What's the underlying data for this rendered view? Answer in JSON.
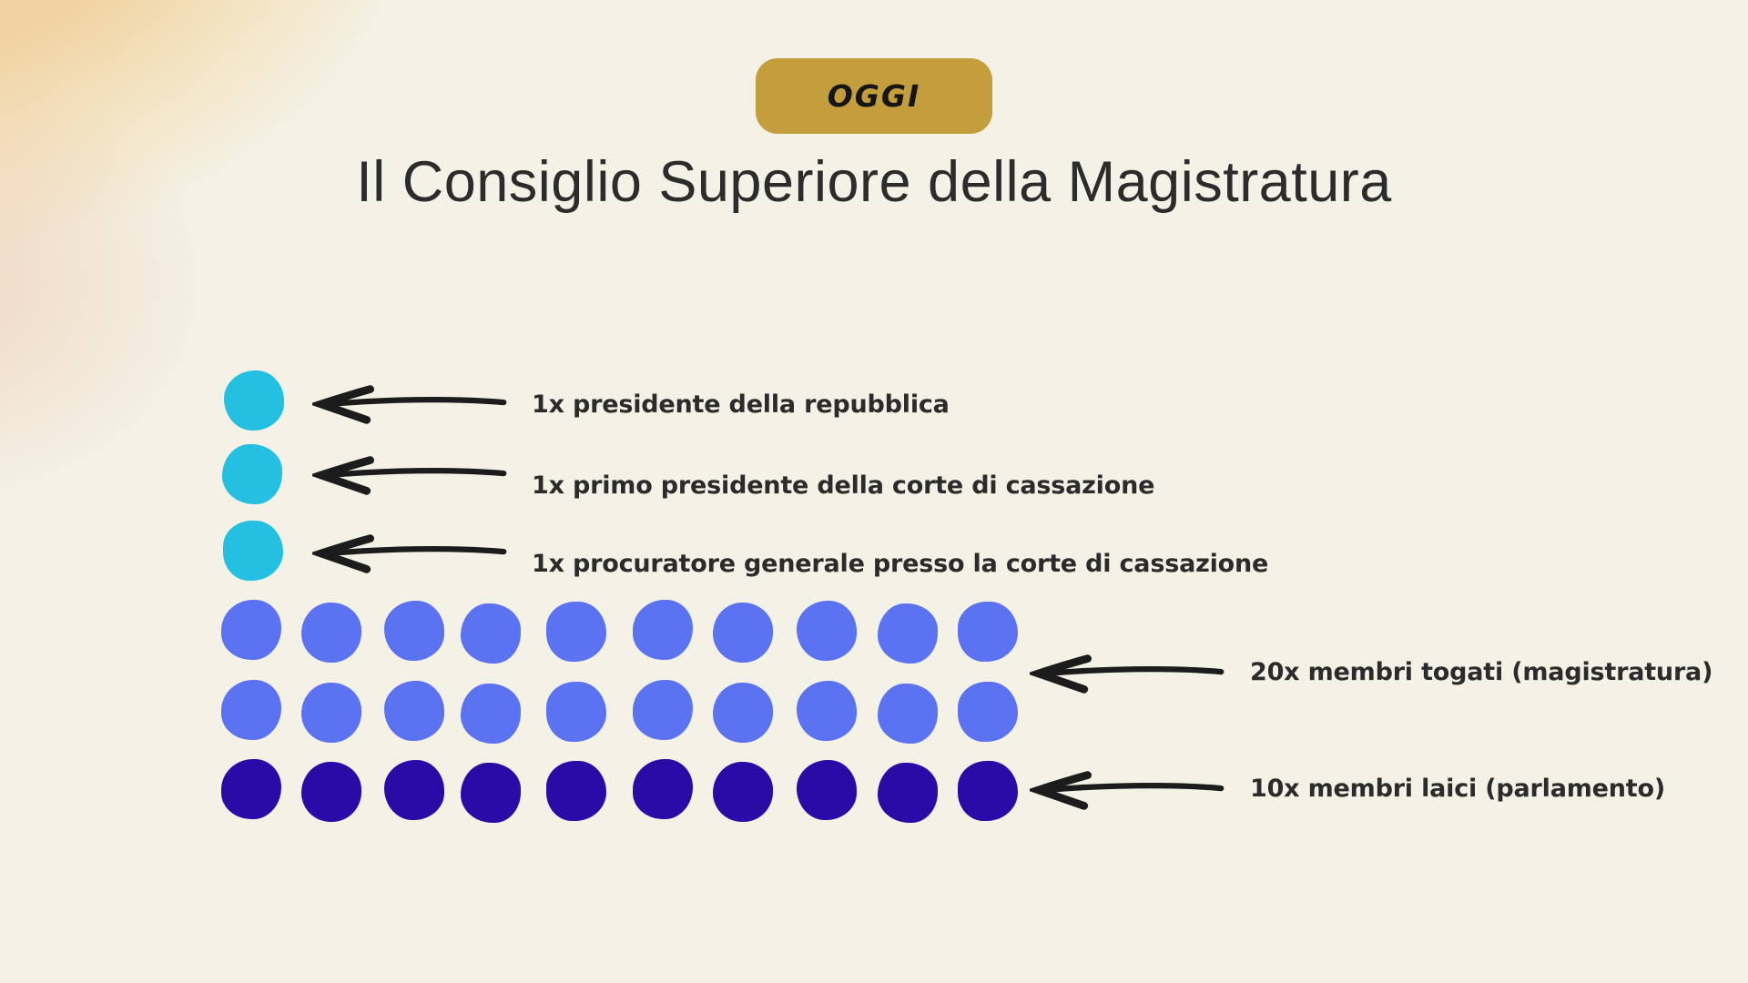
{
  "page": {
    "background_color": "#F4F1E6",
    "blob_color": "#F0CE9D",
    "arrow_color": "#1C1C1C",
    "label_text_color": "#2B2B2B"
  },
  "badge": {
    "label": "OGGI",
    "background_color": "#C49D3C",
    "text_color": "#151515"
  },
  "title": {
    "text": "Il Consiglio Superiore della Magistratura",
    "color": "#2C2C2C"
  },
  "annotations": {
    "left": [
      {
        "label": "1x presidente della repubblica"
      },
      {
        "label": "1x primo presidente della corte di cassazione"
      },
      {
        "label": "1x procuratore generale presso la corte di cassazione"
      }
    ],
    "right": [
      {
        "label": "20x membri togati (magistratura)"
      },
      {
        "label": "10x membri laici (parlamento)"
      }
    ]
  },
  "pictogram": {
    "unit_dots": [
      {
        "role": "presidente della repubblica",
        "count": 1,
        "color": "#25BFE2"
      },
      {
        "role": "primo presidente della corte di cassazione",
        "count": 1,
        "color": "#25BFE2"
      },
      {
        "role": "procuratore generale presso la corte di cassazione",
        "count": 1,
        "color": "#25BFE2"
      }
    ],
    "member_groups": [
      {
        "name": "membri togati",
        "source": "magistratura",
        "count": 20,
        "rows": 2,
        "dots_per_row": 10,
        "color": "#5B73F0"
      },
      {
        "name": "membri laici",
        "source": "parlamento",
        "count": 10,
        "rows": 1,
        "dots_per_row": 10,
        "color": "#2A0BA6"
      }
    ],
    "total_members": 33
  }
}
